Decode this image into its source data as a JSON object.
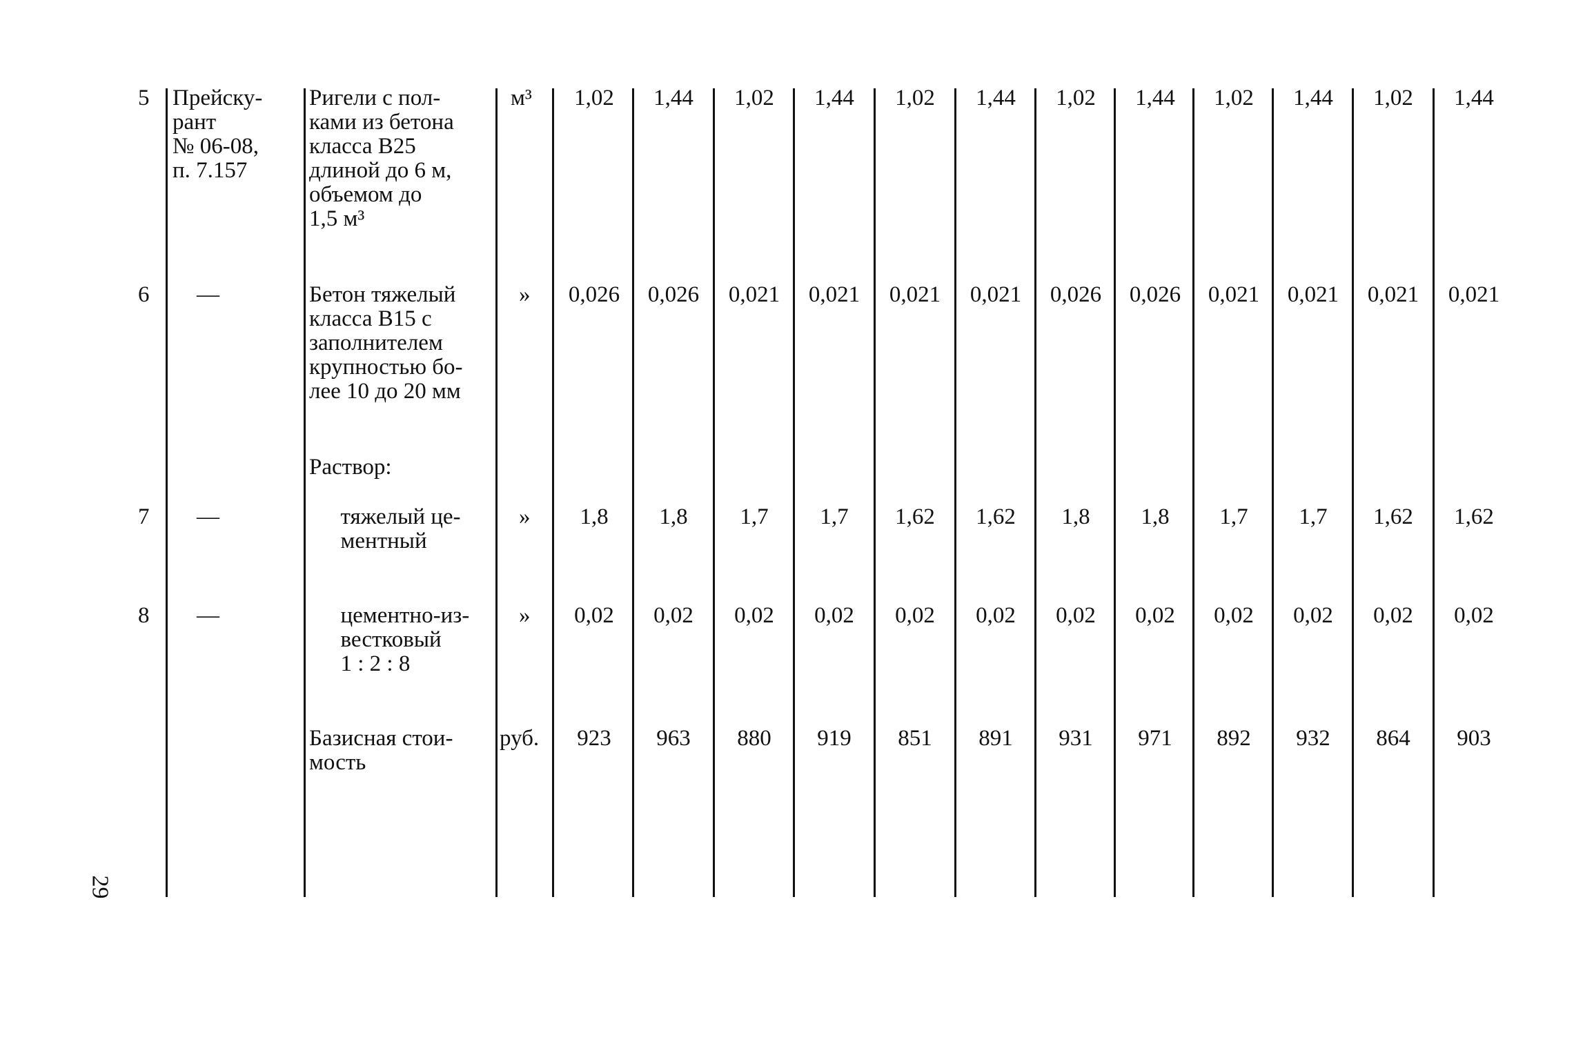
{
  "page_number": "29",
  "rows": [
    {
      "no": "5",
      "source": "Прейску-\nрант\n№ 06-08,\nп. 7.157",
      "name": "Ригели с пол-\nками из бетона\nкласса В25\nдлиной до 6 м,\nобъемом до\n1,5 м³",
      "unit": "м³",
      "values": [
        "1,02",
        "1,44",
        "1,02",
        "1,44",
        "1,02",
        "1,44",
        "1,02",
        "1,44",
        "1,02",
        "1,44",
        "1,02",
        "1,44"
      ]
    },
    {
      "no": "6",
      "source": "—",
      "name": "Бетон тяжелый\nкласса В15 с\nзаполнителем\nкрупностью бо-\nлее 10 до 20 мм",
      "unit": "»",
      "values": [
        "0,026",
        "0,026",
        "0,021",
        "0,021",
        "0,021",
        "0,021",
        "0,026",
        "0,026",
        "0,021",
        "0,021",
        "0,021",
        "0,021"
      ]
    },
    {
      "no": "",
      "source": "",
      "name": "Раствор:",
      "unit": "",
      "values": []
    },
    {
      "no": "7",
      "source": "—",
      "name": "тяжелый це-\nментный",
      "unit": "»",
      "values": [
        "1,8",
        "1,8",
        "1,7",
        "1,7",
        "1,62",
        "1,62",
        "1,8",
        "1,8",
        "1,7",
        "1,7",
        "1,62",
        "1,62"
      ]
    },
    {
      "no": "8",
      "source": "—",
      "name": "цементно-из-\nвестковый\n1 : 2 : 8",
      "unit": "»",
      "values": [
        "0,02",
        "0,02",
        "0,02",
        "0,02",
        "0,02",
        "0,02",
        "0,02",
        "0,02",
        "0,02",
        "0,02",
        "0,02",
        "0,02"
      ]
    },
    {
      "no": "",
      "source": "",
      "name": "Базисная стои-\nмость",
      "unit": "руб.",
      "values": [
        "923",
        "963",
        "880",
        "919",
        "851",
        "891",
        "931",
        "971",
        "892",
        "932",
        "864",
        "903"
      ]
    }
  ]
}
